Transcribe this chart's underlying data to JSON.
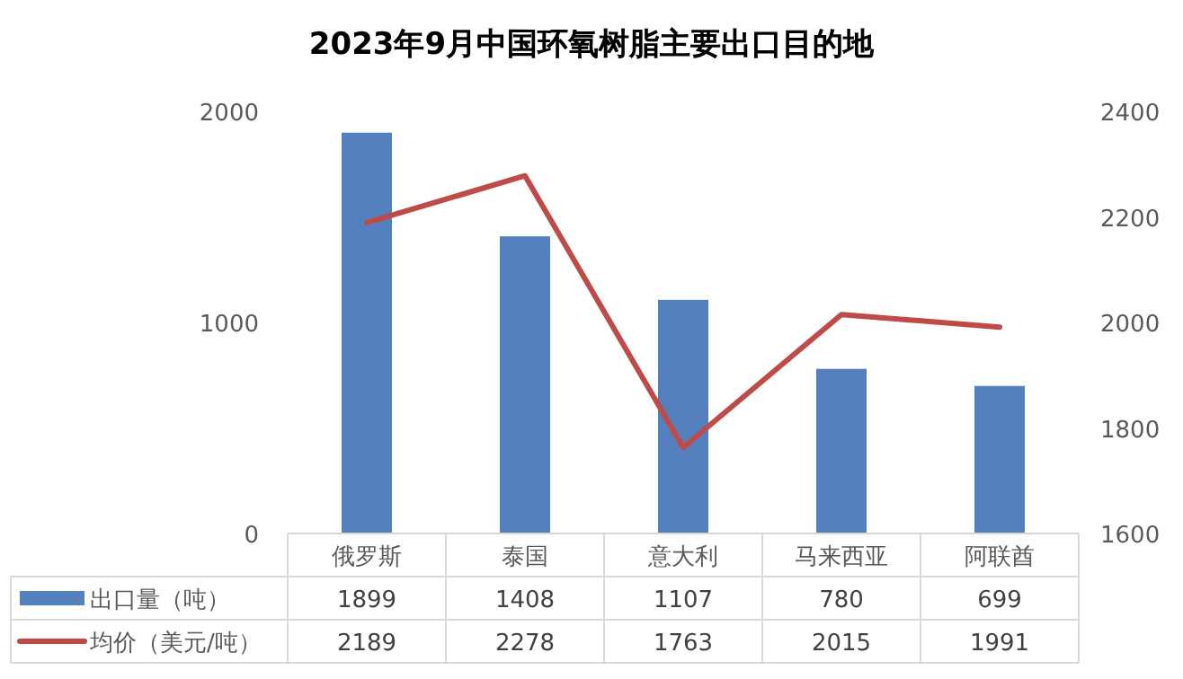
{
  "chart_data": {
    "type": "bar",
    "title": "2023年9月中国环氧树脂主要出口目的地",
    "categories": [
      "俄罗斯",
      "泰国",
      "意大利",
      "马来西亚",
      "阿联酋"
    ],
    "series": [
      {
        "name": "出口量（吨）",
        "color": "#5480c0",
        "values": [
          1899,
          1408,
          1107,
          780,
          699
        ]
      },
      {
        "name": "均价（美元/吨）",
        "type": "line",
        "axis": "y2",
        "color": "#be4b48",
        "values": [
          2189,
          2278,
          1763,
          2015,
          1991
        ]
      }
    ],
    "ylim": [
      0,
      2000
    ],
    "yticks": [
      0,
      1000,
      2000
    ],
    "y2lim": [
      1600,
      2400
    ],
    "y2ticks": [
      1600,
      1800,
      2000,
      2200,
      2400
    ],
    "data_labels": true,
    "legend": "bottom"
  }
}
